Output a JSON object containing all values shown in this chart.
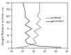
{
  "title": "",
  "xlabel": "",
  "ylabel": "Height Relative to Feet, cm",
  "xlim": [
    0,
    0.5
  ],
  "ylim": [
    0,
    175
  ],
  "xticks": [
    0,
    0.1,
    0.2,
    0.3,
    0.4,
    0.5
  ],
  "yticks": [
    0,
    25,
    50,
    75,
    100,
    125,
    150,
    175
  ],
  "legend_labels": [
    "isolated",
    "grounded"
  ],
  "figsize": [
    1.03,
    0.8
  ],
  "dpi": 100,
  "iso_y": [
    0,
    3,
    6,
    9,
    12,
    15,
    18,
    21,
    24,
    27,
    30,
    33,
    36,
    39,
    42,
    45,
    48,
    51,
    54,
    57,
    60,
    63,
    66,
    69,
    72,
    75,
    78,
    81,
    84,
    87,
    90,
    93,
    96,
    99,
    102,
    105,
    108,
    111,
    114,
    117,
    120,
    123,
    126,
    129,
    132,
    135,
    138,
    141,
    144,
    147,
    150,
    153,
    156,
    159,
    162,
    165,
    168,
    171,
    174
  ],
  "iso_x": [
    0.05,
    0.06,
    0.08,
    0.1,
    0.12,
    0.14,
    0.15,
    0.16,
    0.17,
    0.18,
    0.19,
    0.2,
    0.21,
    0.22,
    0.23,
    0.24,
    0.23,
    0.22,
    0.21,
    0.2,
    0.21,
    0.22,
    0.23,
    0.22,
    0.21,
    0.2,
    0.21,
    0.22,
    0.23,
    0.24,
    0.25,
    0.24,
    0.23,
    0.22,
    0.23,
    0.24,
    0.25,
    0.26,
    0.25,
    0.24,
    0.25,
    0.25,
    0.24,
    0.24,
    0.24,
    0.24,
    0.24,
    0.24,
    0.24,
    0.24,
    0.24,
    0.24,
    0.24,
    0.24,
    0.24,
    0.24,
    0.24,
    0.24,
    0.24
  ],
  "gnd_y": [
    0,
    3,
    6,
    9,
    12,
    15,
    18,
    21,
    24,
    27,
    30,
    33,
    36,
    39,
    42,
    45,
    48,
    51,
    54,
    57,
    60,
    63,
    66,
    69,
    72,
    75,
    78,
    81,
    84,
    87,
    90,
    93,
    96,
    99,
    102,
    105,
    108,
    111,
    114,
    117,
    120,
    123,
    126,
    129,
    132,
    135,
    138,
    141,
    144,
    147,
    150,
    153,
    156,
    159,
    162,
    165,
    168,
    171,
    174
  ],
  "gnd_x": [
    0.42,
    0.36,
    0.3,
    0.24,
    0.2,
    0.17,
    0.15,
    0.14,
    0.13,
    0.13,
    0.14,
    0.15,
    0.14,
    0.13,
    0.12,
    0.12,
    0.13,
    0.14,
    0.13,
    0.12,
    0.13,
    0.14,
    0.15,
    0.16,
    0.17,
    0.18,
    0.19,
    0.18,
    0.17,
    0.16,
    0.17,
    0.18,
    0.19,
    0.18,
    0.17,
    0.16,
    0.15,
    0.14,
    0.13,
    0.12,
    0.12,
    0.12,
    0.12,
    0.12,
    0.12,
    0.12,
    0.12,
    0.12,
    0.12,
    0.12,
    0.12,
    0.12,
    0.12,
    0.12,
    0.12,
    0.12,
    0.12,
    0.12,
    0.12
  ]
}
